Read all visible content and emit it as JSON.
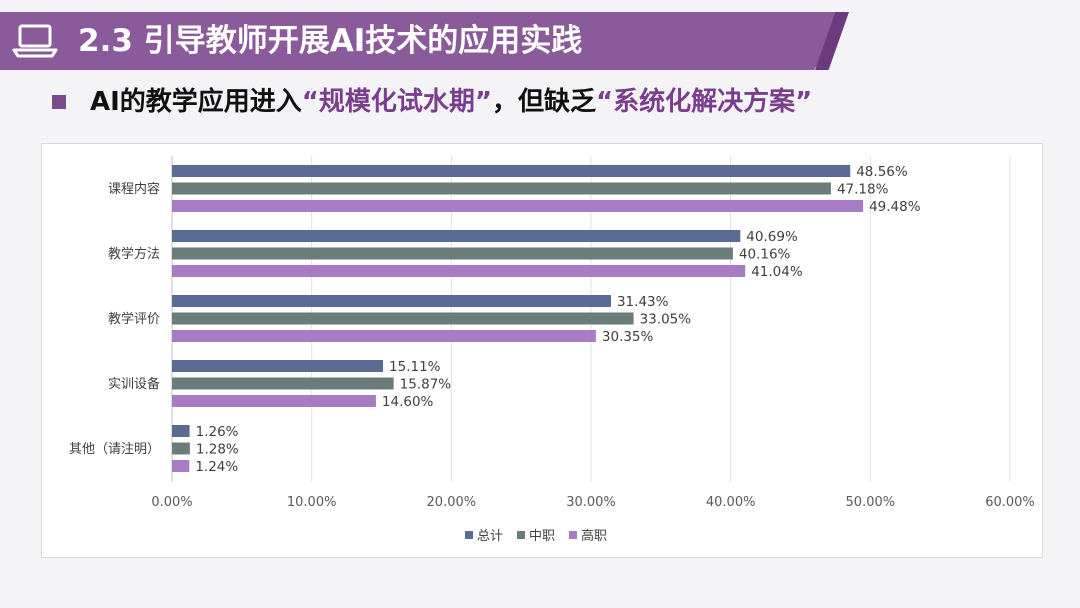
{
  "header": {
    "title": "2.3 引导教师开展AI技术的应用实践",
    "icon": "laptop-icon",
    "bg_color": "#8a5a9a"
  },
  "subtitle": {
    "prefix": "AI的教学应用进入",
    "quote1": "“规模化试水期”",
    "middle": "，但缺乏",
    "quote2": "“系统化解决方案”",
    "highlight_color": "#7a3e8e"
  },
  "chart_data": {
    "type": "bar",
    "orientation": "horizontal",
    "categories": [
      "课程内容",
      "教学方法",
      "教学评价",
      "实训设备",
      "其他（请注明）"
    ],
    "series": [
      {
        "name": "总计",
        "color": "#5a6b94",
        "values": [
          48.56,
          40.69,
          31.43,
          15.11,
          1.26
        ],
        "labels": [
          "48.56%",
          "40.69%",
          "31.43%",
          "15.11%",
          "1.26%"
        ]
      },
      {
        "name": "中职",
        "color": "#6b7d7b",
        "values": [
          47.18,
          40.16,
          33.05,
          15.87,
          1.28
        ],
        "labels": [
          "47.18%",
          "40.16%",
          "33.05%",
          "15.87%",
          "1.28%"
        ]
      },
      {
        "name": "高职",
        "color": "#a87cc4",
        "values": [
          49.48,
          41.04,
          30.35,
          14.6,
          1.24
        ],
        "labels": [
          "49.48%",
          "41.04%",
          "30.35%",
          "14.60%",
          "1.24%"
        ]
      }
    ],
    "xlim": [
      0,
      60
    ],
    "xticks": [
      0,
      10,
      20,
      30,
      40,
      50,
      60
    ],
    "xtick_labels": [
      "0.00%",
      "10.00%",
      "20.00%",
      "30.00%",
      "40.00%",
      "50.00%",
      "60.00%"
    ],
    "grid": true,
    "legend": "bottom"
  }
}
